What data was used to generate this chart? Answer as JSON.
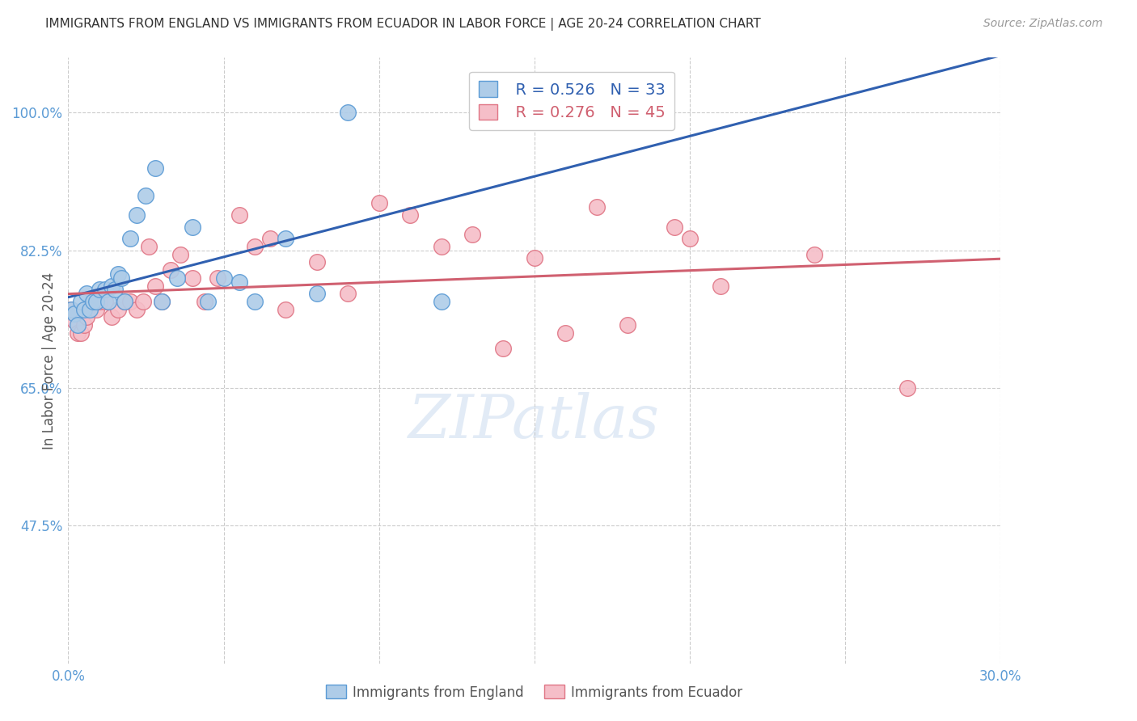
{
  "title": "IMMIGRANTS FROM ENGLAND VS IMMIGRANTS FROM ECUADOR IN LABOR FORCE | AGE 20-24 CORRELATION CHART",
  "source": "Source: ZipAtlas.com",
  "ylabel": "In Labor Force | Age 20-24",
  "xlim": [
    0.0,
    0.3
  ],
  "ylim": [
    0.3,
    1.07
  ],
  "xticks": [
    0.0,
    0.05,
    0.1,
    0.15,
    0.2,
    0.25,
    0.3
  ],
  "xticklabels": [
    "0.0%",
    "",
    "",
    "",
    "",
    "",
    "30.0%"
  ],
  "yticks": [
    0.475,
    0.65,
    0.825,
    1.0
  ],
  "yticklabels": [
    "47.5%",
    "65.0%",
    "82.5%",
    "100.0%"
  ],
  "england_color": "#aecce8",
  "england_edge": "#5b9bd5",
  "ecuador_color": "#f5bec8",
  "ecuador_edge": "#e07585",
  "legend_R_england": "R = 0.526",
  "legend_N_england": "N = 33",
  "legend_R_ecuador": "R = 0.276",
  "legend_N_ecuador": "N = 45",
  "line_england_color": "#3060b0",
  "line_ecuador_color": "#d06070",
  "watermark": "ZIPatlas",
  "axis_label_color": "#5b9bd5",
  "title_color": "#333333",
  "england_scatter_x": [
    0.001,
    0.002,
    0.003,
    0.004,
    0.005,
    0.006,
    0.007,
    0.008,
    0.009,
    0.01,
    0.012,
    0.013,
    0.014,
    0.015,
    0.016,
    0.017,
    0.018,
    0.02,
    0.022,
    0.025,
    0.028,
    0.03,
    0.035,
    0.04,
    0.045,
    0.05,
    0.055,
    0.06,
    0.07,
    0.08,
    0.09,
    0.12,
    0.175
  ],
  "england_scatter_y": [
    0.75,
    0.745,
    0.73,
    0.76,
    0.75,
    0.77,
    0.75,
    0.76,
    0.76,
    0.775,
    0.775,
    0.76,
    0.78,
    0.775,
    0.795,
    0.79,
    0.76,
    0.84,
    0.87,
    0.895,
    0.93,
    0.76,
    0.79,
    0.855,
    0.76,
    0.79,
    0.785,
    0.76,
    0.84,
    0.77,
    1.0,
    0.76,
    1.0
  ],
  "ecuador_scatter_x": [
    0.001,
    0.002,
    0.003,
    0.004,
    0.005,
    0.006,
    0.007,
    0.008,
    0.009,
    0.01,
    0.012,
    0.014,
    0.016,
    0.018,
    0.02,
    0.022,
    0.024,
    0.026,
    0.028,
    0.03,
    0.033,
    0.036,
    0.04,
    0.044,
    0.048,
    0.055,
    0.06,
    0.065,
    0.07,
    0.08,
    0.09,
    0.1,
    0.11,
    0.12,
    0.13,
    0.14,
    0.15,
    0.16,
    0.17,
    0.18,
    0.195,
    0.2,
    0.21,
    0.24,
    0.27
  ],
  "ecuador_scatter_y": [
    0.75,
    0.735,
    0.72,
    0.72,
    0.73,
    0.74,
    0.755,
    0.76,
    0.75,
    0.76,
    0.76,
    0.74,
    0.75,
    0.76,
    0.76,
    0.75,
    0.76,
    0.83,
    0.78,
    0.76,
    0.8,
    0.82,
    0.79,
    0.76,
    0.79,
    0.87,
    0.83,
    0.84,
    0.75,
    0.81,
    0.77,
    0.885,
    0.87,
    0.83,
    0.845,
    0.7,
    0.815,
    0.72,
    0.88,
    0.73,
    0.855,
    0.84,
    0.78,
    0.82,
    0.65
  ],
  "grid_color": "#cccccc",
  "background_color": "#ffffff"
}
